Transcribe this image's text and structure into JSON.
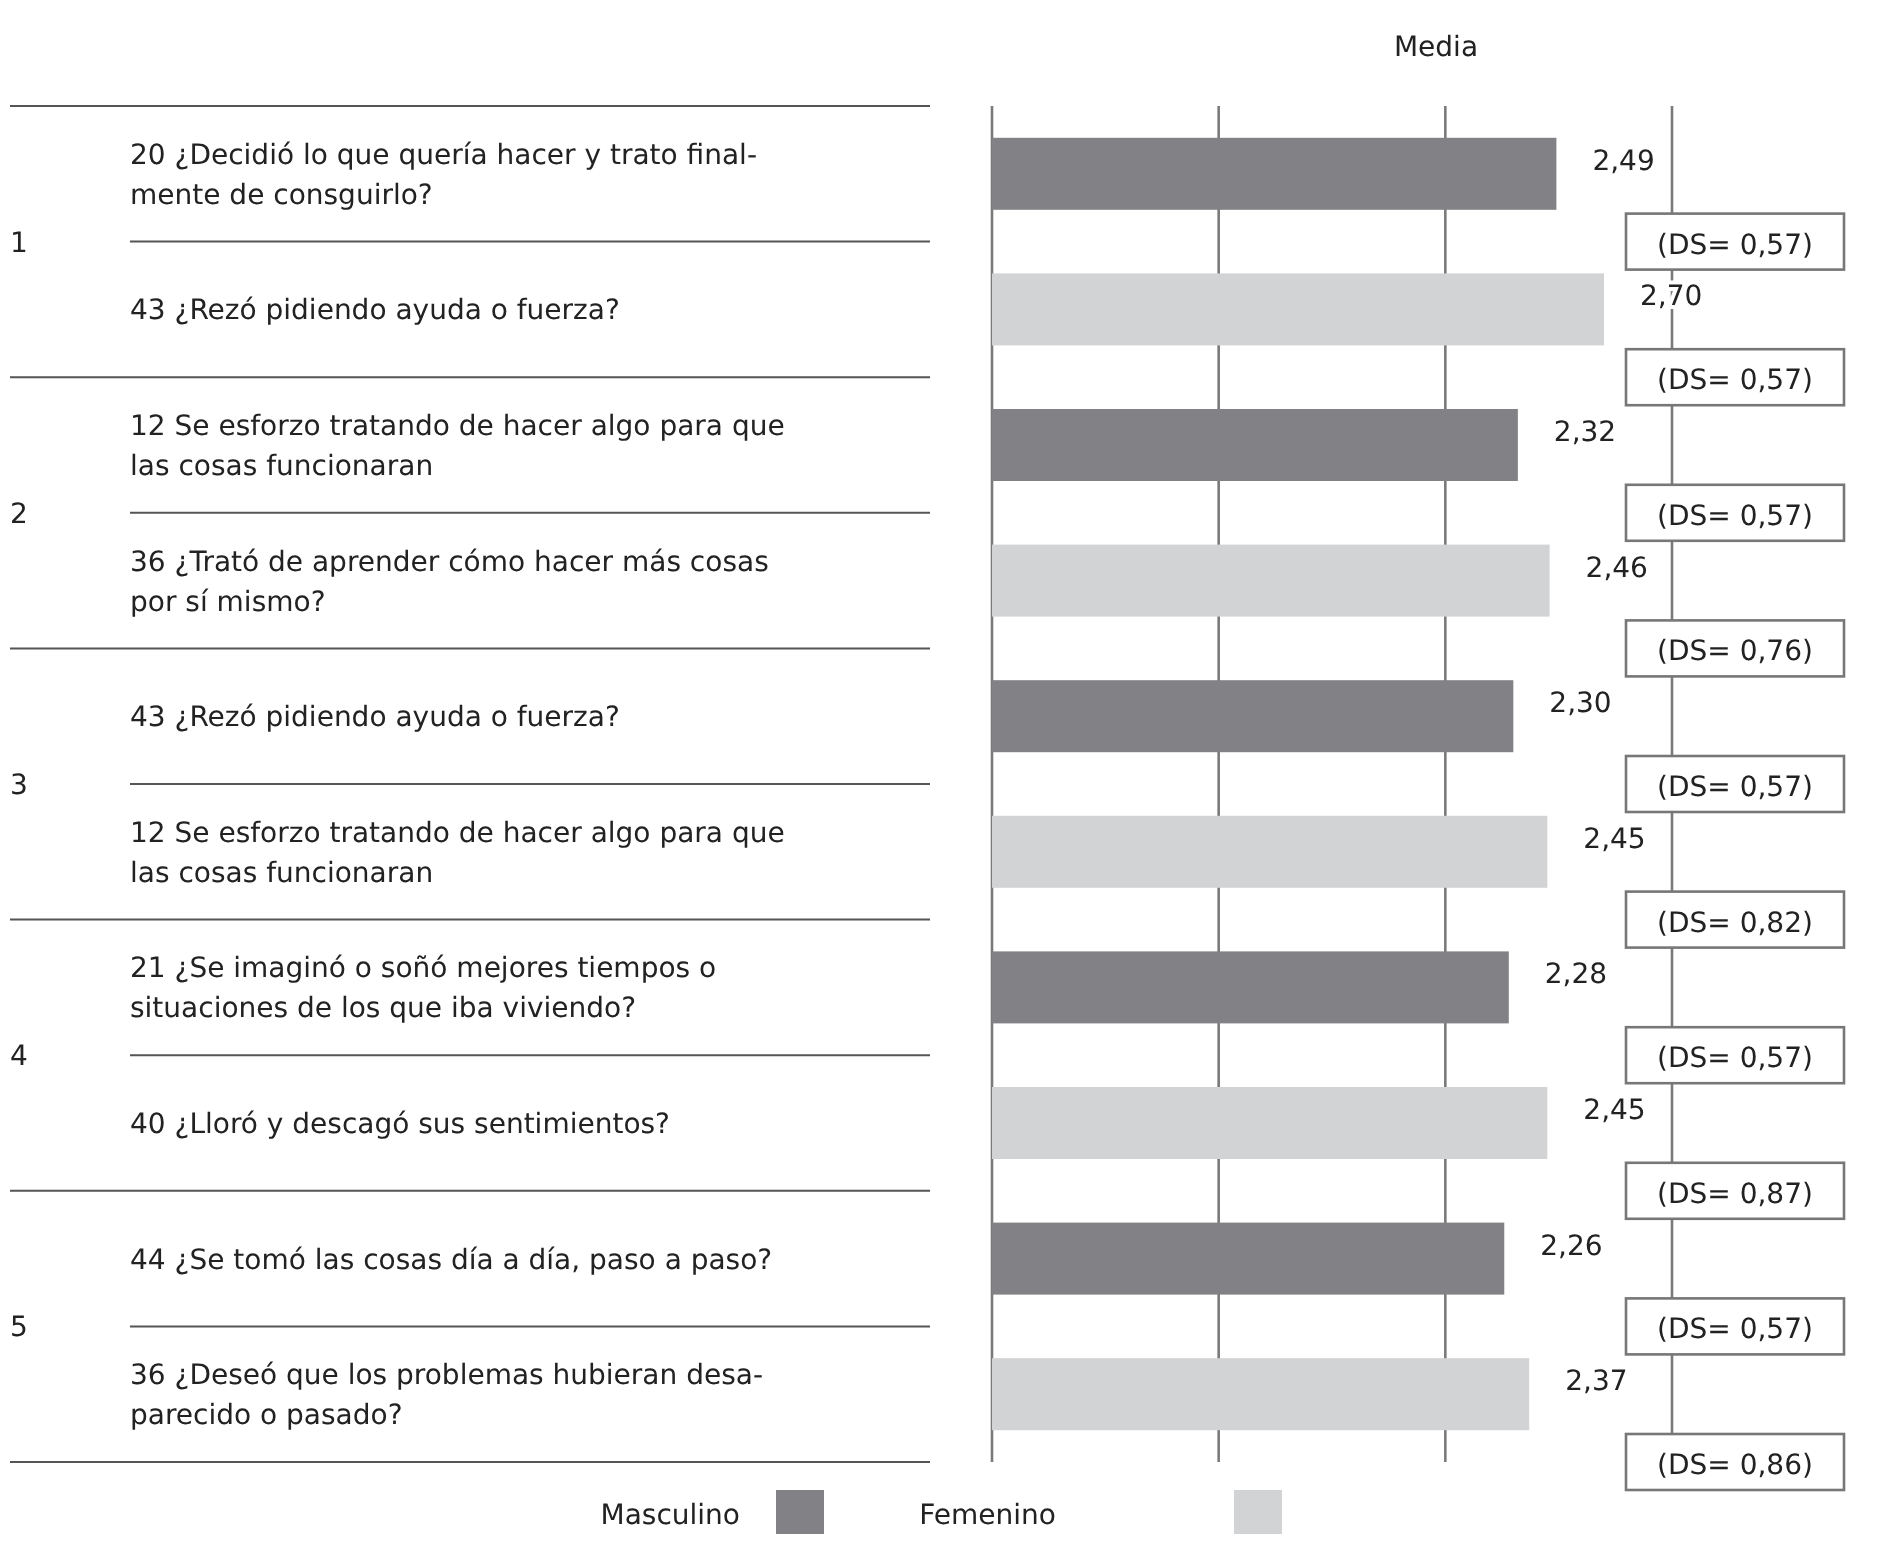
{
  "chart_data": {
    "type": "bar",
    "orientation": "horizontal",
    "title": "Media",
    "categories": [
      "20 ¿Decidió lo que quería hacer y trato final-\nmente de consguirlo?",
      "43 ¿Rezó pidiendo ayuda o fuerza?",
      "12 Se esforzo tratando de hacer algo para que\nlas cosas funcionaran",
      "36 ¿Trató de aprender cómo hacer más cosas\npor sí mismo?",
      "43 ¿Rezó pidiendo ayuda o fuerza?",
      "12 Se esforzo tratando de hacer algo para que\nlas cosas funcionaran",
      "21 ¿Se imaginó o soñó mejores tiempos o\nsituaciones de los que iba viviendo?",
      "40 ¿Lloró y descagó sus sentimientos?",
      "44 ¿Se tomó las cosas día a día, paso a paso?",
      "36 ¿Deseó que los problemas hubieran desa-\nparecido o pasado?"
    ],
    "series": [
      {
        "name": "Masculino",
        "color": "#828286",
        "values": [
          2.49,
          null,
          2.32,
          null,
          2.3,
          null,
          2.28,
          null,
          2.26,
          null
        ],
        "value_labels": [
          "2,49",
          null,
          "2,32",
          null,
          "2,30",
          null,
          "2,28",
          null,
          "2,26",
          null
        ]
      },
      {
        "name": "Femenino",
        "color": "#d2d3d5",
        "values": [
          null,
          2.7,
          null,
          2.46,
          null,
          2.45,
          null,
          2.45,
          null,
          2.37
        ],
        "value_labels": [
          null,
          "2,70",
          null,
          "2,46",
          null,
          "2,45",
          null,
          "2,45",
          null,
          "2,37"
        ]
      }
    ],
    "annotations": [
      "(DS= 0,57)",
      "(DS= 0,57)",
      "(DS= 0,57)",
      "(DS= 0,76)",
      "(DS= 0,57)",
      "(DS= 0,82)",
      "(DS= 0,57)",
      "(DS= 0,87)",
      "(DS= 0,57)",
      "(DS= 0,86)",
      "1",
      "2",
      "3",
      "4",
      "5"
    ],
    "xlim": [
      0,
      3
    ],
    "xticks": [
      {
        "value": 0,
        "label": null
      },
      {
        "value": 1,
        "label": null
      },
      {
        "value": 2,
        "label": null
      },
      {
        "value": 3,
        "label": null
      }
    ],
    "grid": "x",
    "legend": "bottom"
  }
}
